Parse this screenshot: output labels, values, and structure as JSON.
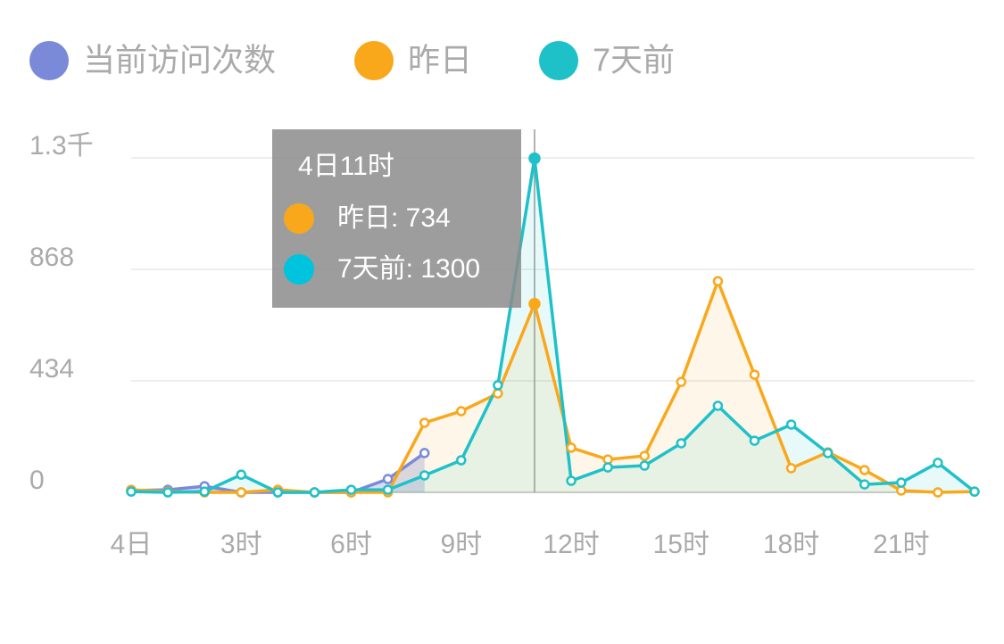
{
  "chart_data": {
    "type": "line",
    "categories": [
      "4日",
      null,
      null,
      "3时",
      null,
      null,
      "6时",
      null,
      null,
      "9时",
      null,
      null,
      "12时",
      null,
      null,
      "15时",
      null,
      null,
      "18时",
      null,
      null,
      "21时",
      null,
      null
    ],
    "series": [
      {
        "name": "当前访问次数",
        "color": "#7b8ad8",
        "values": [
          7,
          10,
          24,
          0,
          0,
          0,
          0,
          52,
          153,
          null,
          null,
          null,
          null,
          null,
          null,
          null,
          null,
          null,
          null,
          null,
          null,
          null,
          null,
          null
        ]
      },
      {
        "name": "昨日",
        "color": "#f9a81b",
        "values": [
          10,
          3,
          0,
          0,
          10,
          0,
          0,
          0,
          271,
          316,
          385,
          734,
          174,
          128,
          142,
          430,
          822,
          458,
          94,
          156,
          87,
          7,
          0,
          3
        ]
      },
      {
        "name": "7天前",
        "color": "#1fc1c9",
        "values": [
          3,
          0,
          3,
          69,
          0,
          0,
          10,
          10,
          66,
          125,
          417,
          1300,
          45,
          97,
          104,
          191,
          337,
          201,
          264,
          153,
          31,
          38,
          115,
          3
        ]
      }
    ],
    "ylim": [
      0,
      1302
    ],
    "yticks": [
      0,
      434,
      868,
      {
        "value": 1302,
        "label": "1.3千"
      }
    ],
    "grid": true,
    "legend": "top",
    "tooltip": {
      "index": 11,
      "title": "4日11时",
      "items": [
        {
          "label": "昨日: 734",
          "color": "#f9a81b"
        },
        {
          "label": "7天前: 1300",
          "color": "#00c3dd"
        }
      ]
    }
  }
}
